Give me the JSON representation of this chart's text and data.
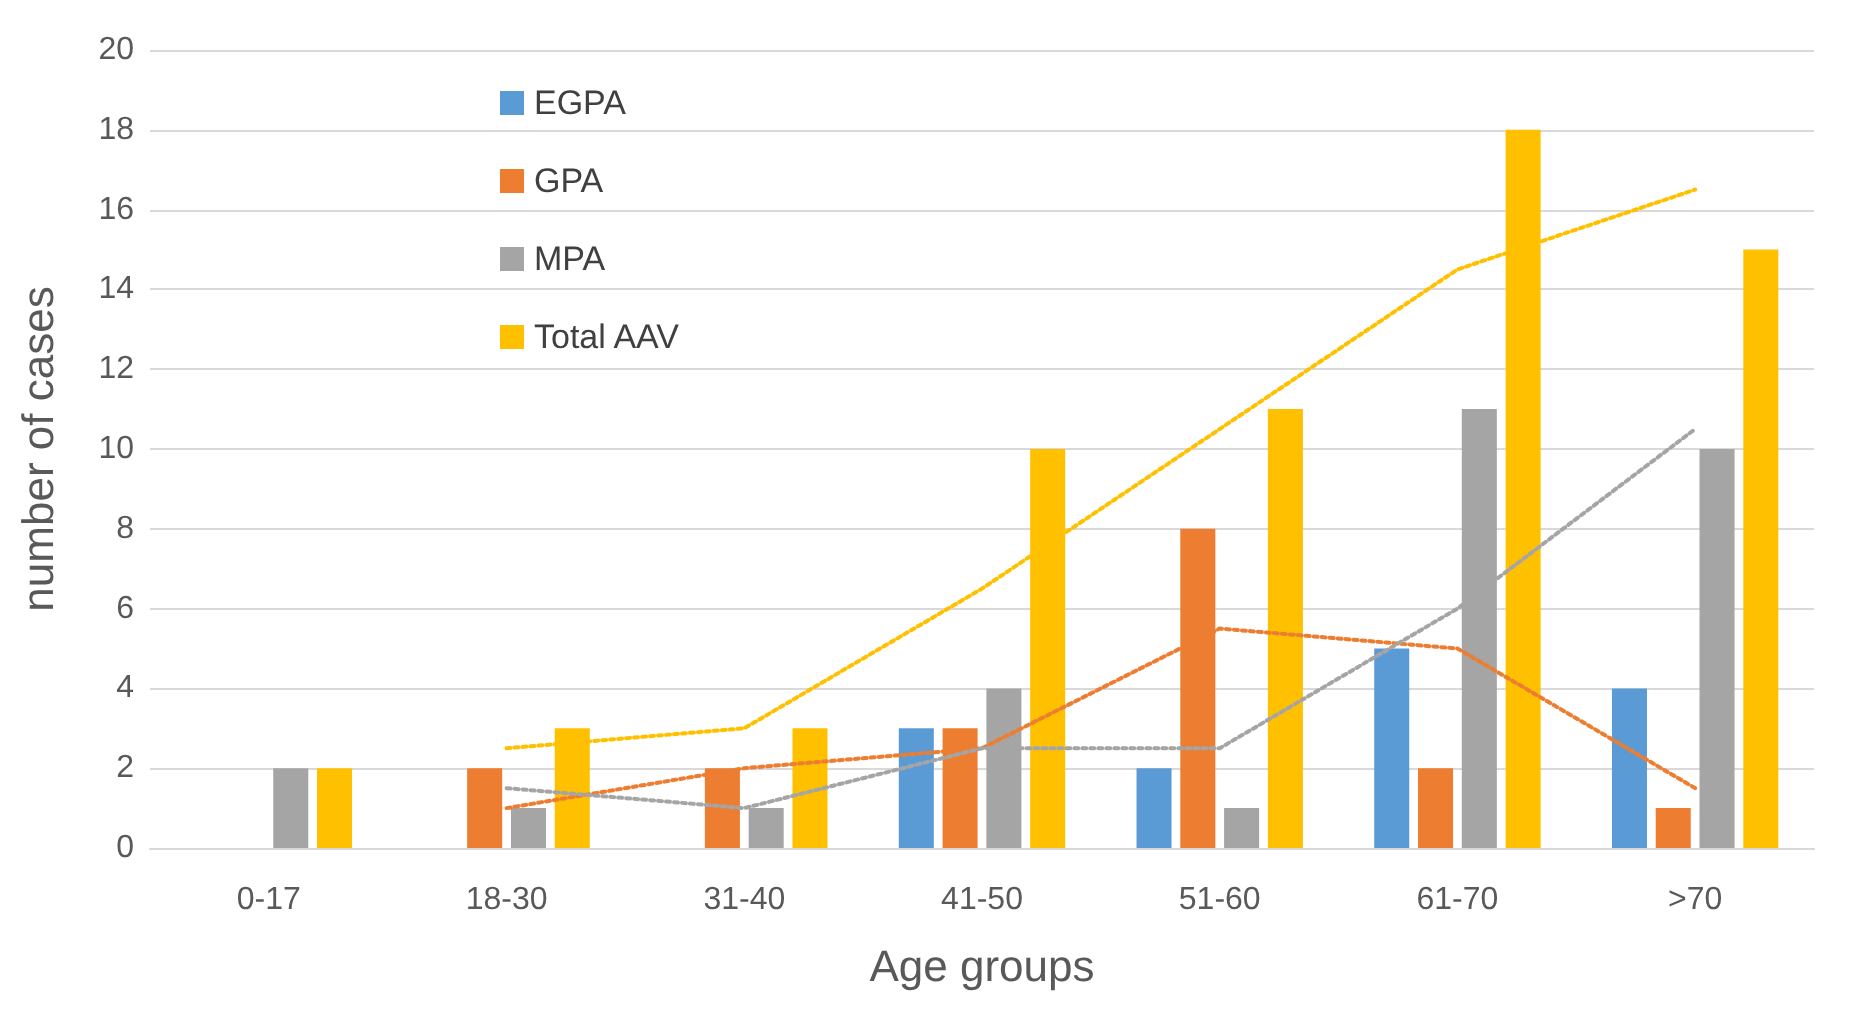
{
  "chart_data": {
    "type": "bar",
    "xlabel": "Age groups",
    "ylabel": "number of cases",
    "categories": [
      "0-17",
      "18-30",
      "31-40",
      "41-50",
      "51-60",
      "61-70",
      ">70"
    ],
    "series": [
      {
        "name": "EGPA",
        "color": "#5b9bd5",
        "values": [
          0,
          0,
          0,
          3,
          2,
          5,
          4
        ]
      },
      {
        "name": "GPA",
        "color": "#ed7d31",
        "values": [
          0,
          2,
          2,
          3,
          8,
          2,
          1
        ]
      },
      {
        "name": "MPA",
        "color": "#a5a5a5",
        "values": [
          2,
          1,
          1,
          4,
          1,
          11,
          10
        ]
      },
      {
        "name": "Total AAV",
        "color": "#ffc000",
        "values": [
          2,
          3,
          3,
          10,
          11,
          18,
          15
        ]
      },
      {
        "type": "line",
        "color": "#ed7d31",
        "line_style": "dotted",
        "marker": "none",
        "x": [
          "18-30",
          "31-40",
          "41-50",
          "51-60",
          "61-70",
          ">70"
        ],
        "values": [
          1,
          2,
          2.5,
          5.5,
          5,
          1.5
        ]
      },
      {
        "type": "line",
        "color": "#a5a5a5",
        "line_style": "dotted",
        "marker": "none",
        "x": [
          "18-30",
          "31-40",
          "41-50",
          "51-60",
          "61-70",
          ">70"
        ],
        "values": [
          1.5,
          1,
          2.5,
          2.5,
          6,
          10.5
        ]
      },
      {
        "type": "line",
        "color": "#ffc000",
        "line_style": "dotted",
        "marker": "none",
        "x": [
          "18-30",
          "31-40",
          "41-50",
          "51-60",
          "61-70",
          ">70"
        ],
        "values": [
          2.5,
          3,
          6.5,
          10.5,
          14.5,
          16.5
        ]
      }
    ],
    "ylim": [
      0,
      20
    ],
    "yticks": [
      0,
      2,
      4,
      6,
      8,
      10,
      12,
      14,
      16,
      18,
      20
    ],
    "grid": "y",
    "legend": "top left"
  }
}
